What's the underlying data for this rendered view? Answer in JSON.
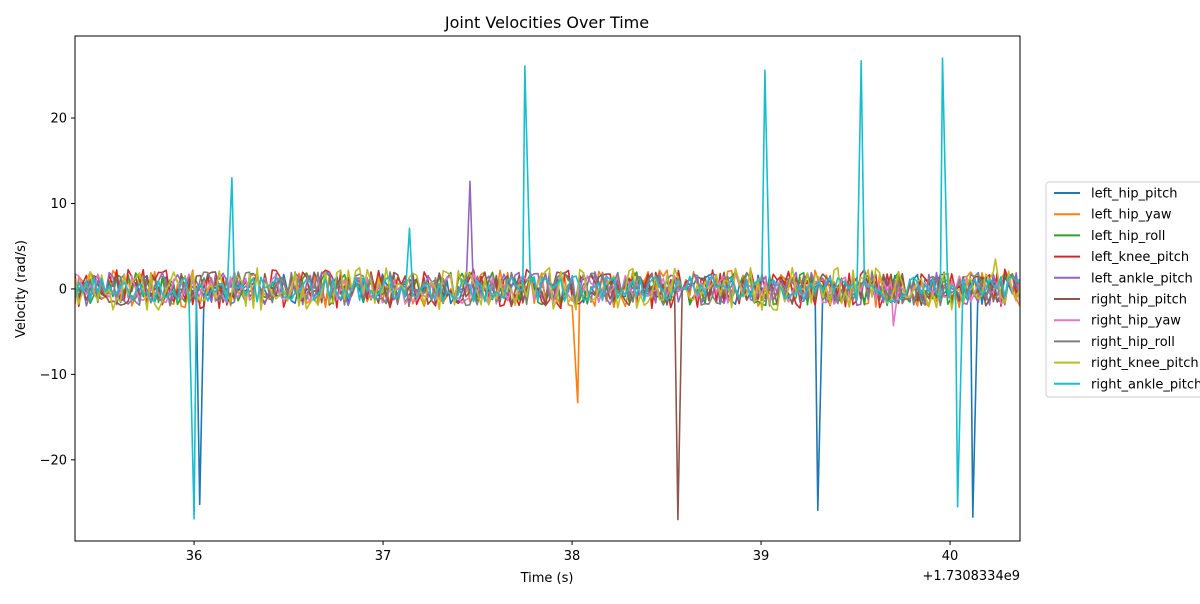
{
  "chart_data": {
    "type": "line",
    "title": "Joint Velocities Over Time",
    "xlabel": "Time (s)",
    "ylabel": "Velocity (rad/s)",
    "xlim": [
      35.37,
      40.37
    ],
    "ylim": [
      -29.5,
      29.6
    ],
    "x_offset_label": "+1.7308334e9",
    "xticks": [
      36,
      37,
      38,
      39,
      40
    ],
    "xtick_labels": [
      "36",
      "37",
      "38",
      "39",
      "40"
    ],
    "yticks": [
      -20,
      -10,
      0,
      10,
      20
    ],
    "ytick_labels": [
      "−20",
      "−10",
      "0",
      "10",
      "20"
    ],
    "grid": false,
    "legend_position": "right-outside",
    "series": [
      {
        "name": "left_hip_pitch",
        "color": "#1f77b4",
        "noise_amp": 1.8,
        "spikes": [
          [
            36.03,
            -25.2
          ],
          [
            39.3,
            -25.9
          ],
          [
            40.12,
            -26.7
          ]
        ]
      },
      {
        "name": "left_hip_yaw",
        "color": "#ff7f0e",
        "noise_amp": 2.2,
        "spikes": [
          [
            38.03,
            -13.3
          ]
        ]
      },
      {
        "name": "left_hip_roll",
        "color": "#2ca02c",
        "noise_amp": 2.0,
        "spikes": []
      },
      {
        "name": "left_knee_pitch",
        "color": "#d62728",
        "noise_amp": 2.3,
        "spikes": []
      },
      {
        "name": "left_ankle_pitch",
        "color": "#9467bd",
        "noise_amp": 2.0,
        "spikes": [
          [
            37.46,
            12.6
          ]
        ]
      },
      {
        "name": "right_hip_pitch",
        "color": "#8c564b",
        "noise_amp": 2.0,
        "spikes": [
          [
            38.56,
            -27.0
          ]
        ]
      },
      {
        "name": "right_hip_yaw",
        "color": "#e377c2",
        "noise_amp": 1.8,
        "spikes": [
          [
            39.7,
            -4.3
          ]
        ]
      },
      {
        "name": "right_hip_roll",
        "color": "#7f7f7f",
        "noise_amp": 2.0,
        "spikes": []
      },
      {
        "name": "right_knee_pitch",
        "color": "#bcbd22",
        "noise_amp": 2.5,
        "spikes": [
          [
            40.24,
            3.5
          ]
        ]
      },
      {
        "name": "right_ankle_pitch",
        "color": "#17becf",
        "noise_amp": 1.5,
        "spikes": [
          [
            36.0,
            -26.9
          ],
          [
            36.2,
            13.0
          ],
          [
            37.14,
            7.1
          ],
          [
            37.75,
            26.1
          ],
          [
            39.02,
            25.6
          ],
          [
            39.53,
            26.7
          ],
          [
            39.96,
            27.0
          ],
          [
            40.04,
            -25.5
          ]
        ]
      }
    ]
  }
}
